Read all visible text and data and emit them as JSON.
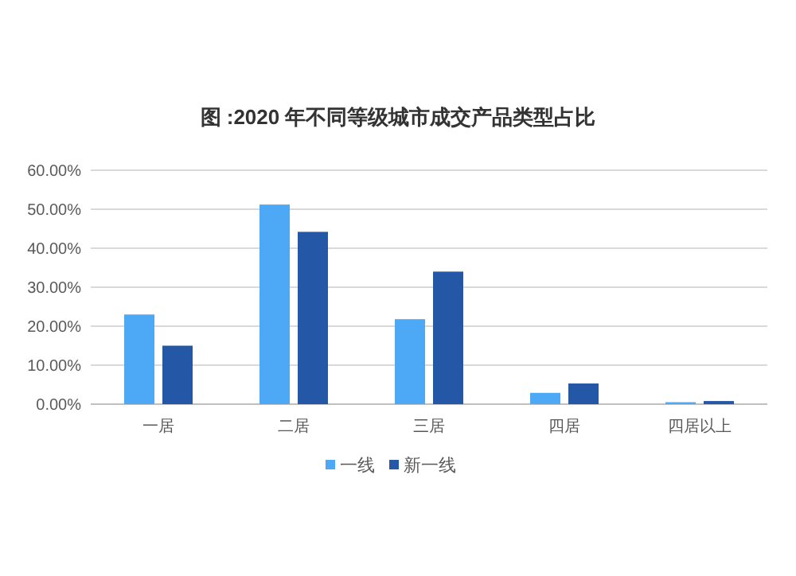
{
  "chart_data": {
    "type": "bar",
    "title": "图 :2020 年不同等级城市成交产品类型占比",
    "categories": [
      "一居",
      "二居",
      "三居",
      "四居",
      "四居以上"
    ],
    "series": [
      {
        "name": "一线",
        "color": "#4da9f5",
        "values": [
          23.0,
          51.2,
          21.8,
          2.9,
          0.5
        ]
      },
      {
        "name": "新一线",
        "color": "#2458a6",
        "values": [
          15.0,
          44.2,
          34.0,
          5.3,
          0.8
        ]
      }
    ],
    "ylim": [
      0,
      60
    ],
    "yticks": [
      {
        "value": 0,
        "label": "0.00%"
      },
      {
        "value": 10,
        "label": "10.00%"
      },
      {
        "value": 20,
        "label": "20.00%"
      },
      {
        "value": 30,
        "label": "30.00%"
      },
      {
        "value": 40,
        "label": "40.00%"
      },
      {
        "value": 50,
        "label": "50.00%"
      },
      {
        "value": 60,
        "label": "60.00%"
      }
    ],
    "grid": "y",
    "legend": "bottom"
  }
}
